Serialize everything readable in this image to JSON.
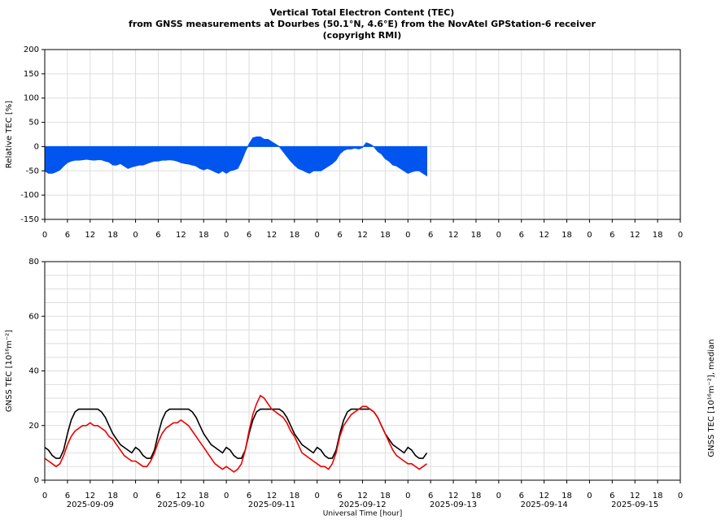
{
  "chart_data": [
    {
      "type": "area",
      "title": [
        "Vertical Total Electron Content (TEC)",
        "from GNSS measurements at Dourbes (50.1°N, 4.6°E) from the NovAtel GPStation-6 receiver",
        "(copyright RMI)"
      ],
      "ylabel": "Relative TEC [%]",
      "ylabel_color": "#0000cc",
      "xlim": [
        0,
        168
      ],
      "ylim": [
        -150,
        200
      ],
      "yticks": [
        -150,
        -100,
        -50,
        0,
        50,
        100,
        150,
        200
      ],
      "grid": true,
      "xticks": [
        0,
        6,
        12,
        18,
        {
          "value": 24,
          "label": "0"
        },
        {
          "value": 30,
          "label": "6"
        },
        {
          "value": 36,
          "label": "12"
        },
        {
          "value": 42,
          "label": "18"
        },
        {
          "value": 48,
          "label": "0"
        },
        {
          "value": 54,
          "label": "6"
        },
        {
          "value": 60,
          "label": "12"
        },
        {
          "value": 66,
          "label": "18"
        },
        {
          "value": 72,
          "label": "0"
        },
        {
          "value": 78,
          "label": "6"
        },
        {
          "value": 84,
          "label": "12"
        },
        {
          "value": 90,
          "label": "18"
        },
        {
          "value": 96,
          "label": "0"
        },
        {
          "value": 102,
          "label": "6"
        },
        {
          "value": 108,
          "label": "12"
        },
        {
          "value": 114,
          "label": "18"
        },
        {
          "value": 120,
          "label": "0"
        },
        {
          "value": 126,
          "label": "6"
        },
        {
          "value": 132,
          "label": "12"
        },
        {
          "value": 138,
          "label": "18"
        },
        {
          "value": 144,
          "label": "0"
        },
        {
          "value": 150,
          "label": "6"
        },
        {
          "value": 156,
          "label": "12"
        },
        {
          "value": 162,
          "label": "18"
        },
        {
          "value": 168,
          "label": "0"
        }
      ],
      "x": [
        0,
        1,
        2,
        3,
        4,
        5,
        6,
        7,
        8,
        9,
        10,
        11,
        12,
        13,
        14,
        15,
        16,
        17,
        18,
        19,
        20,
        21,
        22,
        23,
        24,
        25,
        26,
        27,
        28,
        29,
        30,
        31,
        32,
        33,
        34,
        35,
        36,
        37,
        38,
        39,
        40,
        41,
        42,
        43,
        44,
        45,
        46,
        47,
        48,
        49,
        50,
        51,
        52,
        53,
        54,
        55,
        56,
        57,
        58,
        59,
        60,
        61,
        62,
        63,
        64,
        65,
        66,
        67,
        68,
        69,
        70,
        71,
        72,
        73,
        74,
        75,
        76,
        77,
        78,
        79,
        80,
        81,
        82,
        83,
        84,
        85,
        86,
        87,
        88,
        89,
        90,
        91,
        92,
        93,
        94,
        95,
        96,
        97,
        98,
        99,
        100,
        101
      ],
      "series": [
        {
          "color": "#0055ee",
          "values": [
            -50,
            -55,
            -55,
            -52,
            -48,
            -40,
            -33,
            -30,
            -28,
            -28,
            -27,
            -26,
            -27,
            -28,
            -27,
            -27,
            -30,
            -32,
            -38,
            -38,
            -35,
            -40,
            -45,
            -42,
            -40,
            -38,
            -38,
            -35,
            -32,
            -30,
            -30,
            -28,
            -28,
            -27,
            -28,
            -30,
            -33,
            -35,
            -36,
            -38,
            -40,
            -45,
            -48,
            -45,
            -48,
            -52,
            -55,
            -50,
            -55,
            -50,
            -48,
            -45,
            -30,
            -10,
            5,
            18,
            20,
            20,
            15,
            15,
            10,
            5,
            0,
            -10,
            -20,
            -30,
            -38,
            -45,
            -48,
            -52,
            -55,
            -50,
            -50,
            -50,
            -45,
            -40,
            -35,
            -28,
            -15,
            -8,
            -5,
            -5,
            -3,
            -5,
            -2,
            8,
            5,
            0,
            -10,
            -15,
            -25,
            -30,
            -38,
            -40,
            -45,
            -50,
            -55,
            -52,
            -50,
            -50,
            -55,
            -60
          ]
        }
      ]
    },
    {
      "type": "line",
      "ylabel": "GNSS TEC [10¹⁶m⁻²]",
      "ylabel_color": "#cc0000",
      "y2label": "GNSS TEC [10¹⁶m⁻²], median",
      "xlabel": "Universal Time [hour]",
      "day_labels": [
        "2025-09-09",
        "2025-09-10",
        "2025-09-11",
        "2025-09-12",
        "2025-09-13",
        "2025-09-14",
        "2025-09-15"
      ],
      "xlim": [
        0,
        168
      ],
      "ylim": [
        0,
        80
      ],
      "yticks": [
        0,
        20,
        40,
        60,
        80
      ],
      "minor_yticks": [
        5,
        10,
        15,
        25,
        30,
        35,
        45,
        50,
        55,
        65,
        70,
        75
      ],
      "grid": true,
      "xticks": [
        0,
        6,
        12,
        18,
        {
          "value": 24,
          "label": "0"
        },
        {
          "value": 30,
          "label": "6"
        },
        {
          "value": 36,
          "label": "12"
        },
        {
          "value": 42,
          "label": "18"
        },
        {
          "value": 48,
          "label": "0"
        },
        {
          "value": 54,
          "label": "6"
        },
        {
          "value": 60,
          "label": "12"
        },
        {
          "value": 66,
          "label": "18"
        },
        {
          "value": 72,
          "label": "0"
        },
        {
          "value": 78,
          "label": "6"
        },
        {
          "value": 84,
          "label": "12"
        },
        {
          "value": 90,
          "label": "18"
        },
        {
          "value": 96,
          "label": "0"
        },
        {
          "value": 102,
          "label": "6"
        },
        {
          "value": 108,
          "label": "12"
        },
        {
          "value": 114,
          "label": "18"
        },
        {
          "value": 120,
          "label": "0"
        },
        {
          "value": 126,
          "label": "6"
        },
        {
          "value": 132,
          "label": "12"
        },
        {
          "value": 138,
          "label": "18"
        },
        {
          "value": 144,
          "label": "0"
        },
        {
          "value": 150,
          "label": "6"
        },
        {
          "value": 156,
          "label": "12"
        },
        {
          "value": 162,
          "label": "18"
        },
        {
          "value": 168,
          "label": "0"
        }
      ],
      "x": [
        0,
        1,
        2,
        3,
        4,
        5,
        6,
        7,
        8,
        9,
        10,
        11,
        12,
        13,
        14,
        15,
        16,
        17,
        18,
        19,
        20,
        21,
        22,
        23,
        24,
        25,
        26,
        27,
        28,
        29,
        30,
        31,
        32,
        33,
        34,
        35,
        36,
        37,
        38,
        39,
        40,
        41,
        42,
        43,
        44,
        45,
        46,
        47,
        48,
        49,
        50,
        51,
        52,
        53,
        54,
        55,
        56,
        57,
        58,
        59,
        60,
        61,
        62,
        63,
        64,
        65,
        66,
        67,
        68,
        69,
        70,
        71,
        72,
        73,
        74,
        75,
        76,
        77,
        78,
        79,
        80,
        81,
        82,
        83,
        84,
        85,
        86,
        87,
        88,
        89,
        90,
        91,
        92,
        93,
        94,
        95,
        96,
        97,
        98,
        99,
        100,
        101
      ],
      "series": [
        {
          "color": "#000000",
          "values": [
            12,
            11,
            9,
            8,
            8,
            11,
            17,
            22,
            25,
            26,
            26,
            26,
            26,
            26,
            26,
            25,
            23,
            20,
            17,
            15,
            13,
            12,
            11,
            10,
            12,
            11,
            9,
            8,
            8,
            11,
            17,
            22,
            25,
            26,
            26,
            26,
            26,
            26,
            26,
            25,
            23,
            20,
            17,
            15,
            13,
            12,
            11,
            10,
            12,
            11,
            9,
            8,
            8,
            11,
            17,
            22,
            25,
            26,
            26,
            26,
            26,
            26,
            26,
            25,
            23,
            20,
            17,
            15,
            13,
            12,
            11,
            10,
            12,
            11,
            9,
            8,
            8,
            11,
            17,
            22,
            25,
            26,
            26,
            26,
            26,
            26,
            26,
            25,
            23,
            20,
            17,
            15,
            13,
            12,
            11,
            10,
            12,
            11,
            9,
            8,
            8,
            10
          ]
        },
        {
          "color": "#ee0000",
          "values": [
            8,
            7,
            6,
            5,
            6,
            9,
            13,
            16,
            18,
            19,
            20,
            20,
            21,
            20,
            20,
            19,
            18,
            16,
            15,
            13,
            11,
            9,
            8,
            7,
            7,
            6,
            5,
            5,
            7,
            10,
            14,
            17,
            19,
            20,
            21,
            21,
            22,
            21,
            20,
            18,
            16,
            14,
            12,
            10,
            8,
            6,
            5,
            4,
            5,
            4,
            3,
            4,
            6,
            11,
            18,
            24,
            28,
            31,
            30,
            28,
            26,
            25,
            24,
            23,
            21,
            18,
            16,
            13,
            10,
            9,
            8,
            7,
            6,
            5,
            5,
            4,
            6,
            10,
            16,
            20,
            22,
            24,
            25,
            26,
            27,
            27,
            26,
            25,
            23,
            20,
            17,
            14,
            11,
            9,
            8,
            7,
            6,
            6,
            5,
            4,
            5,
            6
          ]
        }
      ]
    }
  ]
}
